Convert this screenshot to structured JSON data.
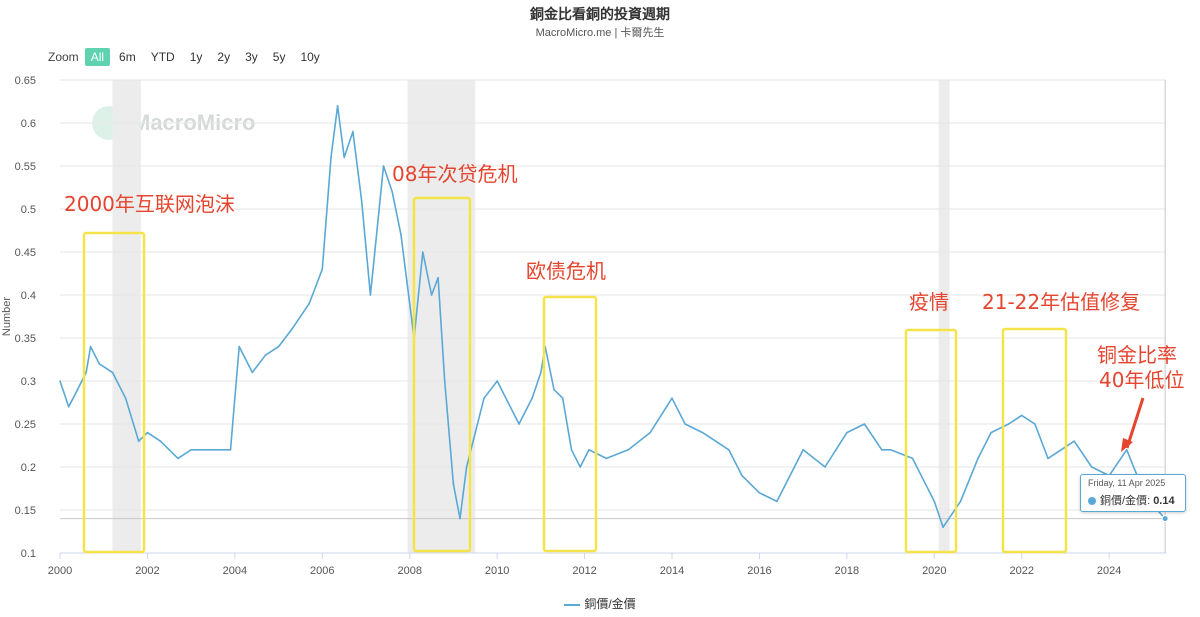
{
  "header": {
    "title": "銅金比看銅的投資週期",
    "subtitle": "MacroMicro.me | 卡爾先生"
  },
  "zoom": {
    "label": "Zoom",
    "buttons": [
      "All",
      "6m",
      "YTD",
      "1y",
      "2y",
      "3y",
      "5y",
      "10y"
    ],
    "active": "All"
  },
  "watermark": {
    "text": "MacroMicro"
  },
  "tooltip": {
    "date": "Friday, 11 Apr 2025",
    "series": "銅價/金價",
    "value": "0.14"
  },
  "legend": {
    "series_name": "銅價/金價"
  },
  "colors": {
    "series": "#5aa8d6",
    "annotation_box": "#f5e34a",
    "annotation_text": "#e5442e",
    "recession_band": "#ececec",
    "arrow": "#e5442e"
  },
  "chart_data": {
    "type": "line",
    "ylabel": "Number",
    "xlabel": "",
    "ylim": [
      0.1,
      0.65
    ],
    "yticks": [
      0.1,
      0.15,
      0.2,
      0.25,
      0.3,
      0.35,
      0.4,
      0.45,
      0.5,
      0.55,
      0.6,
      0.65
    ],
    "ytick_labels": [
      "0.1",
      "0.15",
      "0.2",
      "0.25",
      "0.3",
      "0.35",
      "0.4",
      "0.45",
      "0.5",
      "0.55",
      "0.6",
      "0.65"
    ],
    "xlim": [
      2000,
      2025.3
    ],
    "xticks": [
      2000,
      2002,
      2004,
      2006,
      2008,
      2010,
      2012,
      2014,
      2016,
      2018,
      2020,
      2022,
      2024
    ],
    "xtick_labels": [
      "2000",
      "2002",
      "2004",
      "2006",
      "2008",
      "2010",
      "2012",
      "2014",
      "2016",
      "2018",
      "2020",
      "2022",
      "2024"
    ],
    "grid": true,
    "legend_position": "bottom-center",
    "reference_line": 0.14,
    "recession_bands": [
      [
        2001.2,
        2001.85
      ],
      [
        2007.95,
        2009.5
      ],
      [
        2020.1,
        2020.35
      ]
    ],
    "series": [
      {
        "name": "銅價/金價",
        "points": [
          [
            2000.0,
            0.3
          ],
          [
            2000.2,
            0.27
          ],
          [
            2000.4,
            0.29
          ],
          [
            2000.6,
            0.31
          ],
          [
            2000.7,
            0.34
          ],
          [
            2000.9,
            0.32
          ],
          [
            2001.2,
            0.31
          ],
          [
            2001.5,
            0.28
          ],
          [
            2001.8,
            0.23
          ],
          [
            2002.0,
            0.24
          ],
          [
            2002.3,
            0.23
          ],
          [
            2002.7,
            0.21
          ],
          [
            2003.0,
            0.22
          ],
          [
            2003.5,
            0.22
          ],
          [
            2003.9,
            0.22
          ],
          [
            2004.1,
            0.34
          ],
          [
            2004.4,
            0.31
          ],
          [
            2004.7,
            0.33
          ],
          [
            2005.0,
            0.34
          ],
          [
            2005.3,
            0.36
          ],
          [
            2005.7,
            0.39
          ],
          [
            2006.0,
            0.43
          ],
          [
            2006.2,
            0.56
          ],
          [
            2006.35,
            0.62
          ],
          [
            2006.5,
            0.56
          ],
          [
            2006.7,
            0.59
          ],
          [
            2006.9,
            0.51
          ],
          [
            2007.1,
            0.4
          ],
          [
            2007.2,
            0.45
          ],
          [
            2007.4,
            0.55
          ],
          [
            2007.6,
            0.52
          ],
          [
            2007.8,
            0.47
          ],
          [
            2007.95,
            0.41
          ],
          [
            2008.1,
            0.35
          ],
          [
            2008.3,
            0.45
          ],
          [
            2008.5,
            0.4
          ],
          [
            2008.65,
            0.42
          ],
          [
            2008.8,
            0.3
          ],
          [
            2009.0,
            0.18
          ],
          [
            2009.15,
            0.14
          ],
          [
            2009.3,
            0.2
          ],
          [
            2009.5,
            0.24
          ],
          [
            2009.7,
            0.28
          ],
          [
            2010.0,
            0.3
          ],
          [
            2010.3,
            0.27
          ],
          [
            2010.5,
            0.25
          ],
          [
            2010.8,
            0.28
          ],
          [
            2011.0,
            0.31
          ],
          [
            2011.1,
            0.34
          ],
          [
            2011.3,
            0.29
          ],
          [
            2011.5,
            0.28
          ],
          [
            2011.7,
            0.22
          ],
          [
            2011.9,
            0.2
          ],
          [
            2012.1,
            0.22
          ],
          [
            2012.5,
            0.21
          ],
          [
            2013.0,
            0.22
          ],
          [
            2013.5,
            0.24
          ],
          [
            2014.0,
            0.28
          ],
          [
            2014.3,
            0.25
          ],
          [
            2014.7,
            0.24
          ],
          [
            2015.0,
            0.23
          ],
          [
            2015.3,
            0.22
          ],
          [
            2015.6,
            0.19
          ],
          [
            2016.0,
            0.17
          ],
          [
            2016.4,
            0.16
          ],
          [
            2016.8,
            0.2
          ],
          [
            2017.0,
            0.22
          ],
          [
            2017.5,
            0.2
          ],
          [
            2018.0,
            0.24
          ],
          [
            2018.4,
            0.25
          ],
          [
            2018.8,
            0.22
          ],
          [
            2019.0,
            0.22
          ],
          [
            2019.5,
            0.21
          ],
          [
            2019.8,
            0.18
          ],
          [
            2020.0,
            0.16
          ],
          [
            2020.2,
            0.13
          ],
          [
            2020.6,
            0.16
          ],
          [
            2021.0,
            0.21
          ],
          [
            2021.3,
            0.24
          ],
          [
            2021.7,
            0.25
          ],
          [
            2022.0,
            0.26
          ],
          [
            2022.3,
            0.25
          ],
          [
            2022.6,
            0.21
          ],
          [
            2022.9,
            0.22
          ],
          [
            2023.2,
            0.23
          ],
          [
            2023.6,
            0.2
          ],
          [
            2024.0,
            0.19
          ],
          [
            2024.4,
            0.22
          ],
          [
            2024.8,
            0.17
          ],
          [
            2025.1,
            0.15
          ],
          [
            2025.28,
            0.14
          ]
        ]
      }
    ],
    "annotations": [
      {
        "label": "2000年互联网泡沫",
        "range": [
          2000.55,
          2001.9
        ]
      },
      {
        "label": "08年次贷危机",
        "range": [
          2008.1,
          2009.4
        ]
      },
      {
        "label": "欧债危机",
        "range": [
          2011.1,
          2012.25
        ]
      },
      {
        "label": "疫情",
        "range": [
          2019.45,
          2020.5
        ]
      },
      {
        "label": "21-22年估值修复",
        "range": [
          2021.65,
          2023.05
        ]
      },
      {
        "label": "铜金比率\n40年低位",
        "arrow_to": [
          2024.35,
          0.19
        ]
      }
    ]
  }
}
